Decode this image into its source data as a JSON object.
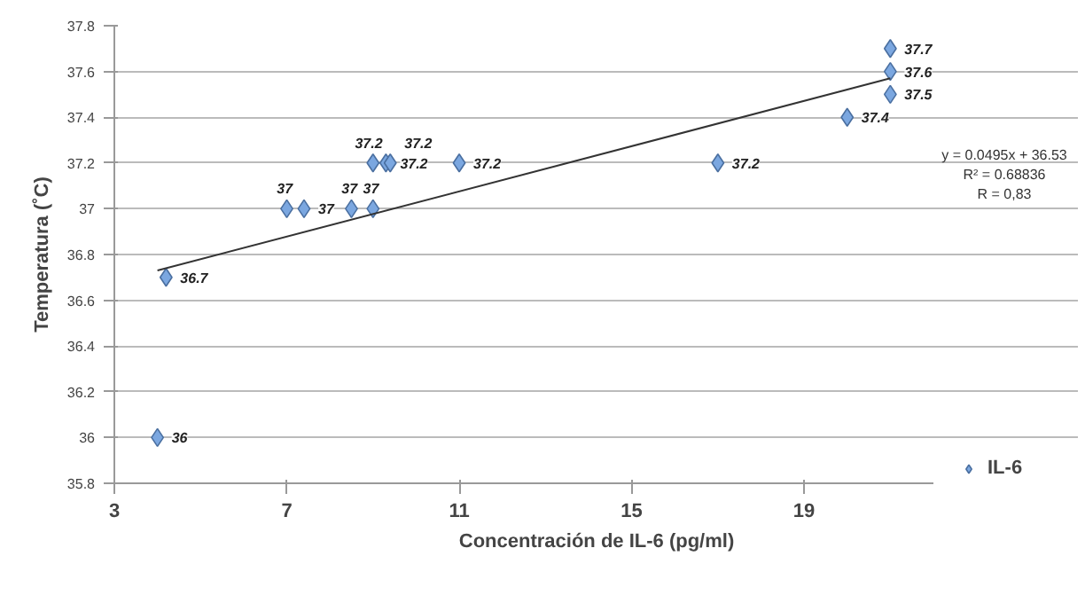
{
  "chart_data": {
    "type": "scatter",
    "xlabel": "Concentración de IL-6 (pg/ml)",
    "ylabel": "Temperatura (˚C)",
    "xlim": [
      3,
      22
    ],
    "xticks": [
      3,
      7,
      11,
      15,
      19
    ],
    "ylim": [
      35.8,
      37.8
    ],
    "yticks": [
      {
        "value": 35.8,
        "label": "35.8"
      },
      {
        "value": 36,
        "label": "36"
      },
      {
        "value": 36.2,
        "label": "36.2"
      },
      {
        "value": 36.4,
        "label": "36.4"
      },
      {
        "value": 36.6,
        "label": "36.6"
      },
      {
        "value": 36.8,
        "label": "36.8"
      },
      {
        "value": 37,
        "label": "37"
      },
      {
        "value": 37.2,
        "label": "37.2"
      },
      {
        "value": 37.4,
        "label": "37.4"
      },
      {
        "value": 37.6,
        "label": "37.6"
      },
      {
        "value": 37.8,
        "label": "37.8"
      }
    ],
    "grid": "y",
    "legend": "bottom right",
    "marker": "diamond",
    "series": [
      {
        "name": "IL-6",
        "color": "#7ba7e0",
        "x": [
          4.0,
          4.2,
          7.0,
          7.4,
          8.5,
          9.0,
          9.0,
          9.3,
          9.4,
          11.0,
          17.0,
          20.0,
          21.0,
          21.0,
          21.0
        ],
        "values": [
          36,
          36.7,
          37,
          37,
          37,
          37,
          37.2,
          37.2,
          37.2,
          37.2,
          37.2,
          37.4,
          37.5,
          37.6,
          37.7
        ],
        "value_labels": [
          "36",
          "36.7",
          "37",
          "37",
          "37",
          "37",
          "37.2",
          "37.2",
          "37.2",
          "37.2",
          "37.2",
          "37.4",
          "37.5",
          "37.6",
          "37.7"
        ]
      },
      {
        "type": "line",
        "marker": "none",
        "color": "#333333",
        "x": [
          4.0,
          21.0
        ],
        "values": [
          36.73,
          37.57
        ]
      }
    ],
    "annotations": [
      "y = 0.0495x + 36.53",
      "R² = 0.68836",
      "R = 0,83"
    ]
  }
}
